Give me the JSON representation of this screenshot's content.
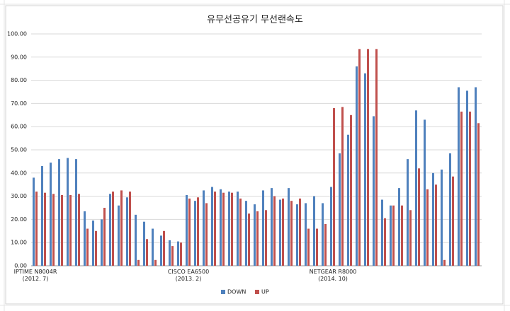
{
  "chart_data": {
    "type": "bar",
    "title": "유무선공유기 무선랜속도",
    "categories": [
      "IPTIME N8004R\n(2012. 7)",
      null,
      null,
      null,
      null,
      null,
      null,
      null,
      null,
      null,
      null,
      null,
      null,
      null,
      null,
      null,
      null,
      null,
      "CISCO EA6500\n(2013. 2)",
      null,
      null,
      null,
      null,
      null,
      null,
      null,
      null,
      null,
      null,
      null,
      null,
      null,
      null,
      null,
      null,
      "NETGEAR R8000\n(2014. 10)",
      null,
      null,
      null,
      null,
      null,
      null,
      null,
      null,
      null,
      null,
      null,
      null,
      null,
      null,
      null,
      null,
      null
    ],
    "series": [
      {
        "name": "DOWN",
        "color": "#4f81bd",
        "values": [
          38,
          43,
          44.5,
          46,
          46.5,
          46,
          23.5,
          19.5,
          20,
          31,
          26,
          29.5,
          22,
          19,
          16,
          13,
          11,
          10.5,
          30.5,
          28,
          32.5,
          34,
          33,
          32,
          32,
          28,
          26.5,
          32.5,
          33.5,
          28.5,
          33.5,
          26.5,
          27,
          30,
          27,
          34,
          48.5,
          56.5,
          86,
          83,
          64.5,
          28.5,
          26,
          33.5,
          46,
          67,
          63,
          40,
          41.5,
          48.5,
          77,
          75.5,
          77
        ]
      },
      {
        "name": "UP",
        "color": "#c0504d",
        "values": [
          32,
          31.5,
          31,
          30.5,
          30.5,
          31,
          16,
          15,
          25,
          32,
          32.5,
          32,
          2.5,
          11.5,
          2.5,
          15,
          8.5,
          10,
          29,
          29.5,
          27,
          32,
          31.5,
          31.5,
          29,
          22.5,
          23.5,
          24,
          30,
          29,
          28,
          29,
          16,
          16,
          18,
          68,
          68.5,
          65,
          93.5,
          93.5,
          93.5,
          20.5,
          26,
          26,
          24,
          42,
          33,
          35,
          2.5,
          38.5,
          66.5,
          66.5,
          61.5
        ]
      }
    ],
    "ylim": [
      0,
      100
    ],
    "yticks": [
      {
        "value": 0,
        "label": "0.00"
      },
      {
        "value": 10,
        "label": "10.00"
      },
      {
        "value": 20,
        "label": "20.00"
      },
      {
        "value": 30,
        "label": "30.00"
      },
      {
        "value": 40,
        "label": "40.00"
      },
      {
        "value": 50,
        "label": "50.00"
      },
      {
        "value": 60,
        "label": "60.00"
      },
      {
        "value": 70,
        "label": "70.00"
      },
      {
        "value": 80,
        "label": "80.00"
      },
      {
        "value": 90,
        "label": "90.00"
      },
      {
        "value": 100,
        "label": "100.00"
      }
    ],
    "grid": true,
    "legend": "bottom"
  }
}
